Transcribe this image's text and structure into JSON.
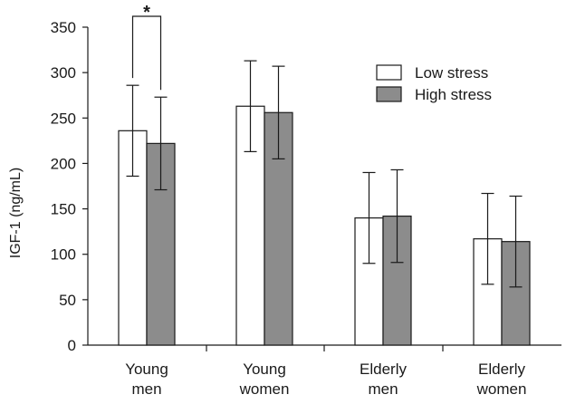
{
  "chart_data": {
    "type": "bar",
    "ylabel": "IGF-1 (ng/mL)",
    "ylim": [
      0,
      350
    ],
    "yticks": [
      0,
      50,
      100,
      150,
      200,
      250,
      300,
      350
    ],
    "categories": [
      [
        "Young",
        "men"
      ],
      [
        "Young",
        "women"
      ],
      [
        "Elderly",
        "men"
      ],
      [
        "Elderly",
        "women"
      ]
    ],
    "series": [
      {
        "name": "Low stress",
        "color": "#ffffff",
        "values": [
          236,
          263,
          140,
          117
        ],
        "error": [
          50,
          50,
          50,
          50
        ]
      },
      {
        "name": "High stress",
        "color": "#8c8c8c",
        "values": [
          222,
          256,
          142,
          114
        ],
        "error": [
          51,
          51,
          51,
          50
        ]
      }
    ],
    "grid": false,
    "legend_position": "top-right",
    "annotations": [
      {
        "text": "*",
        "category_index": 0,
        "type": "significance-bracket"
      }
    ]
  }
}
